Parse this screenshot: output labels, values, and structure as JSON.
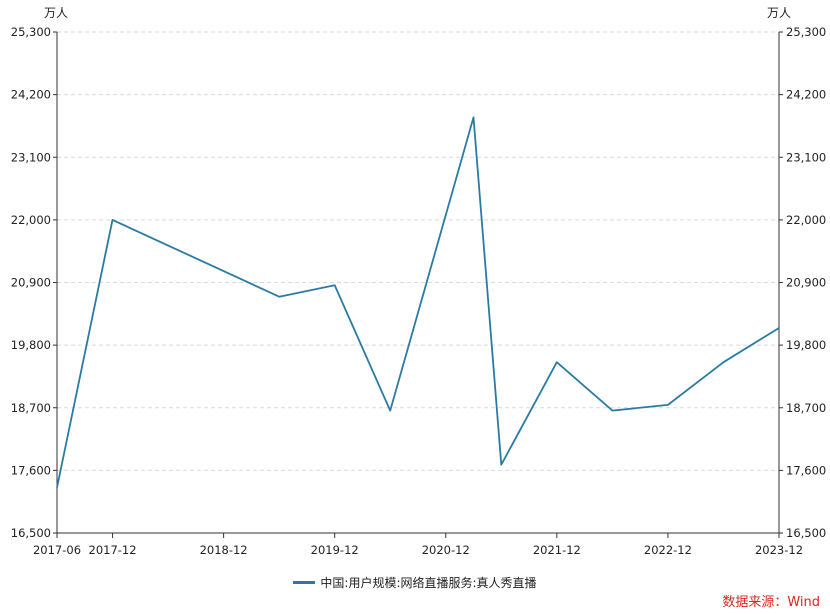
{
  "chart_data": {
    "type": "line",
    "unit_left": "万人",
    "unit_right": "万人",
    "yticks": [
      16500,
      17600,
      18700,
      19800,
      20900,
      22000,
      23100,
      24200,
      25300
    ],
    "ytick_labels": [
      "16,500",
      "17,600",
      "18,700",
      "19,800",
      "20,900",
      "22,000",
      "23,100",
      "24,200",
      "25,300"
    ],
    "ylim": [
      16500,
      25300
    ],
    "xlim": [
      "2017-06",
      "2023-12"
    ],
    "xtick_labels": [
      "2017-06",
      "2017-12",
      "2018-12",
      "2019-12",
      "2020-12",
      "2021-12",
      "2022-12",
      "2023-12"
    ],
    "xtick_dates": [
      "2017-06",
      "2017-12",
      "2018-12",
      "2019-12",
      "2020-12",
      "2021-12",
      "2022-12",
      "2023-12"
    ],
    "grid": true,
    "legend_position": "bottom",
    "series": [
      {
        "name": "中国:用户规模:网络直播服务:真人秀直播",
        "color": "#2a7ba3",
        "x": [
          "2017-06",
          "2017-12",
          "2019-06",
          "2019-12",
          "2020-06",
          "2021-03",
          "2021-06",
          "2021-12",
          "2022-06",
          "2022-12",
          "2023-06",
          "2023-12"
        ],
        "y": [
          17300,
          22000,
          20650,
          20850,
          18650,
          23800,
          17700,
          19500,
          18650,
          18750,
          19500,
          20100
        ]
      }
    ]
  },
  "source": "数据来源：Wind"
}
